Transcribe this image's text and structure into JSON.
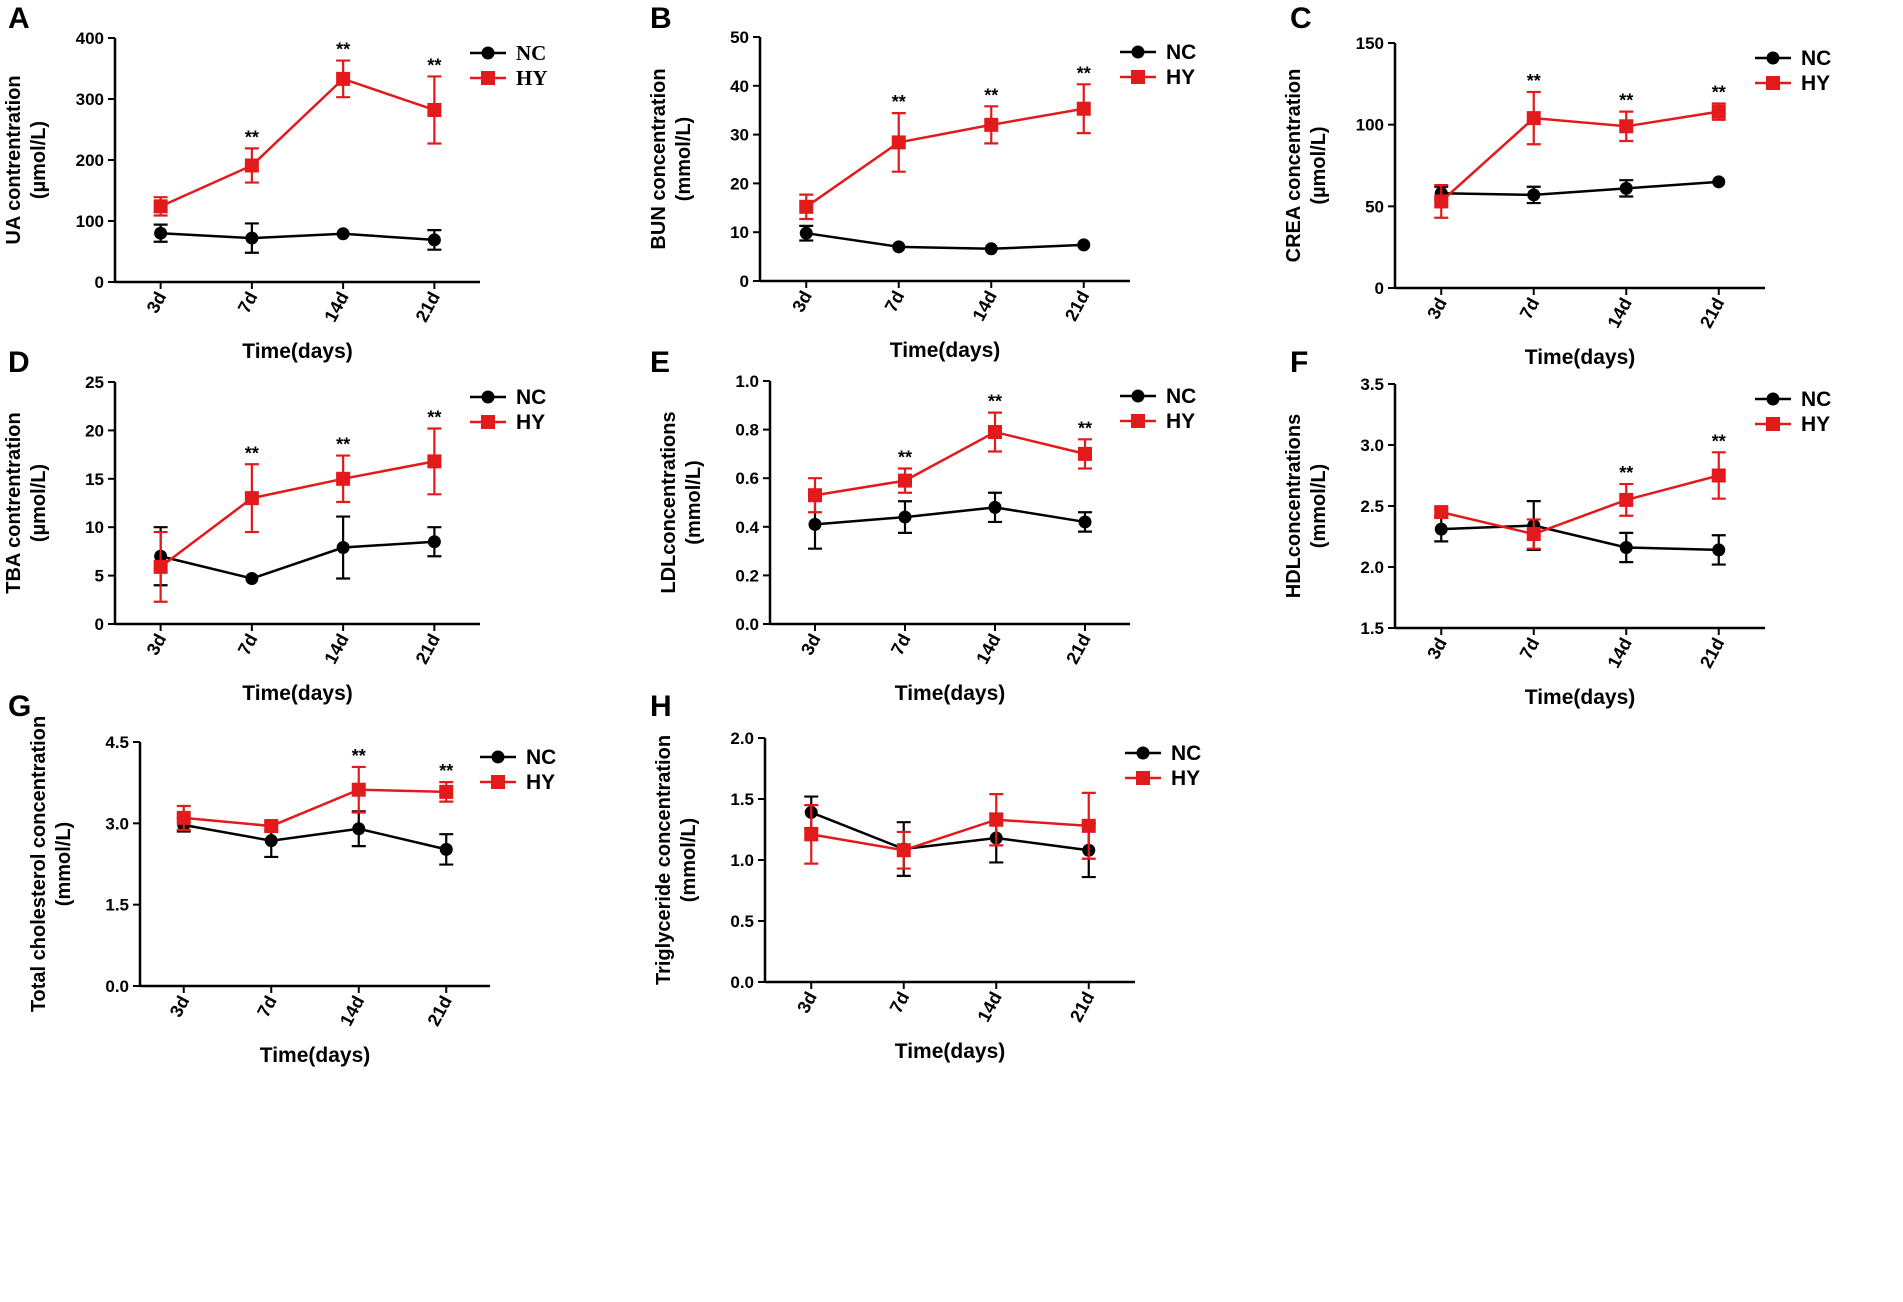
{
  "colors": {
    "NC": "#000000",
    "HY": "#e31a1c"
  },
  "chart_data": [
    {
      "panel": "A",
      "type": "line",
      "ylabel_lines": [
        "UA contrentration",
        "(µmol/L)"
      ],
      "xlabel": "Time(days)",
      "categories": [
        "3d",
        "7d",
        "14d",
        "21d"
      ],
      "ylim": [
        0,
        400
      ],
      "yticks": [
        "0",
        "100",
        "200",
        "300",
        "400"
      ],
      "ytick_values": [
        0,
        100,
        200,
        300,
        400
      ],
      "legend": [
        "NC",
        "HY"
      ],
      "legend_position": "top-right",
      "legend_serif": true,
      "series": [
        {
          "name": "NC",
          "values": [
            80,
            72,
            79,
            69
          ],
          "errors": [
            14,
            24,
            0,
            16
          ]
        },
        {
          "name": "HY",
          "values": [
            124,
            191,
            333,
            282
          ],
          "errors": [
            15,
            28,
            30,
            55
          ]
        }
      ],
      "annotations": [
        {
          "index": 1,
          "text": "**"
        },
        {
          "index": 2,
          "text": "**"
        },
        {
          "index": 3,
          "text": "**"
        }
      ]
    },
    {
      "panel": "B",
      "type": "line",
      "ylabel_lines": [
        "BUN concentration",
        "(mmol/L)"
      ],
      "xlabel": "Time(days)",
      "categories": [
        "3d",
        "7d",
        "14d",
        "21d"
      ],
      "ylim": [
        0,
        50
      ],
      "yticks": [
        "0",
        "10",
        "20",
        "30",
        "40",
        "50"
      ],
      "ytick_values": [
        0,
        10,
        20,
        30,
        40,
        50
      ],
      "legend": [
        "NC",
        "HY"
      ],
      "legend_position": "top-right",
      "series": [
        {
          "name": "NC",
          "values": [
            9.8,
            7.0,
            6.6,
            7.4
          ],
          "errors": [
            1.5,
            0,
            0,
            0
          ]
        },
        {
          "name": "HY",
          "values": [
            15.2,
            28.4,
            32.0,
            35.3
          ],
          "errors": [
            2.5,
            6.0,
            3.8,
            5.0
          ]
        }
      ],
      "annotations": [
        {
          "index": 1,
          "text": "**"
        },
        {
          "index": 2,
          "text": "**"
        },
        {
          "index": 3,
          "text": "**"
        }
      ]
    },
    {
      "panel": "C",
      "type": "line",
      "ylabel_lines": [
        "CREA concentration",
        "(µmol/L)"
      ],
      "xlabel": "Time(days)",
      "categories": [
        "3d",
        "7d",
        "14d",
        "21d"
      ],
      "ylim": [
        0,
        150
      ],
      "yticks": [
        "0",
        "50",
        "100",
        "150"
      ],
      "ytick_values": [
        0,
        50,
        100,
        150
      ],
      "legend": [
        "NC",
        "HY"
      ],
      "legend_position": "top-right",
      "series": [
        {
          "name": "NC",
          "values": [
            58,
            57,
            61,
            65
          ],
          "errors": [
            4,
            5,
            5,
            0
          ]
        },
        {
          "name": "HY",
          "values": [
            53,
            104,
            99,
            108
          ],
          "errors": [
            10,
            16,
            9,
            5
          ]
        }
      ],
      "annotations": [
        {
          "index": 1,
          "text": "**"
        },
        {
          "index": 2,
          "text": "**"
        },
        {
          "index": 3,
          "text": "**"
        }
      ]
    },
    {
      "panel": "D",
      "type": "line",
      "ylabel_lines": [
        "TBA contrentration",
        "(µmol/L)"
      ],
      "xlabel": "Time(days)",
      "categories": [
        "3d",
        "7d",
        "14d",
        "21d"
      ],
      "ylim": [
        0,
        25
      ],
      "yticks": [
        "0",
        "5",
        "10",
        "15",
        "20",
        "25"
      ],
      "ytick_values": [
        0,
        5,
        10,
        15,
        20,
        25
      ],
      "legend": [
        "NC",
        "HY"
      ],
      "legend_position": "top-right",
      "series": [
        {
          "name": "NC",
          "values": [
            7.0,
            4.7,
            7.9,
            8.5
          ],
          "errors": [
            3.0,
            0,
            3.2,
            1.5
          ]
        },
        {
          "name": "HY",
          "values": [
            5.9,
            13.0,
            15.0,
            16.8
          ],
          "errors": [
            3.6,
            3.5,
            2.4,
            3.4
          ]
        }
      ],
      "annotations": [
        {
          "index": 1,
          "text": "**"
        },
        {
          "index": 2,
          "text": "**"
        },
        {
          "index": 3,
          "text": "**"
        }
      ]
    },
    {
      "panel": "E",
      "type": "line",
      "ylabel_lines": [
        "LDLconcentrations",
        "(mmol/L)"
      ],
      "xlabel": "Time(days)",
      "categories": [
        "3d",
        "7d",
        "14d",
        "21d"
      ],
      "ylim": [
        0,
        1.0
      ],
      "yticks": [
        "0.0",
        "0.2",
        "0.4",
        "0.6",
        "0.8",
        "1.0"
      ],
      "ytick_values": [
        0,
        0.2,
        0.4,
        0.6,
        0.8,
        1.0
      ],
      "legend": [
        "NC",
        "HY"
      ],
      "legend_position": "top-right",
      "series": [
        {
          "name": "NC",
          "values": [
            0.41,
            0.44,
            0.48,
            0.42
          ],
          "errors": [
            0.1,
            0.065,
            0.06,
            0.04
          ]
        },
        {
          "name": "HY",
          "values": [
            0.53,
            0.59,
            0.79,
            0.7
          ],
          "errors": [
            0.07,
            0.05,
            0.08,
            0.06
          ]
        }
      ],
      "annotations": [
        {
          "index": 1,
          "text": "**"
        },
        {
          "index": 2,
          "text": "**"
        },
        {
          "index": 3,
          "text": "**"
        }
      ]
    },
    {
      "panel": "F",
      "type": "line",
      "ylabel_lines": [
        "HDLconcentrations",
        "(mmol/L)"
      ],
      "xlabel": "Time(days)",
      "categories": [
        "3d",
        "7d",
        "14d",
        "21d"
      ],
      "ylim": [
        1.5,
        3.5
      ],
      "yticks": [
        "1.5",
        "2.0",
        "2.5",
        "3.0",
        "3.5"
      ],
      "ytick_values": [
        1.5,
        2.0,
        2.5,
        3.0,
        3.5
      ],
      "legend": [
        "NC",
        "HY"
      ],
      "legend_position": "top-right",
      "series": [
        {
          "name": "NC",
          "values": [
            2.31,
            2.34,
            2.16,
            2.14
          ],
          "errors": [
            0.1,
            0.2,
            0.12,
            0.12
          ]
        },
        {
          "name": "HY",
          "values": [
            2.45,
            2.27,
            2.55,
            2.75
          ],
          "errors": [
            0.03,
            0.12,
            0.13,
            0.19
          ]
        }
      ],
      "annotations": [
        {
          "index": 2,
          "text": "**"
        },
        {
          "index": 3,
          "text": "**"
        }
      ]
    },
    {
      "panel": "G",
      "type": "line",
      "ylabel_lines": [
        "Total cholesterol concentration",
        "(mmol/L)"
      ],
      "xlabel": "Time(days)",
      "categories": [
        "3d",
        "7d",
        "14d",
        "21d"
      ],
      "ylim": [
        0,
        4.5
      ],
      "yticks": [
        "0.0",
        "1.5",
        "3.0",
        "4.5"
      ],
      "ytick_values": [
        0,
        1.5,
        3.0,
        4.5
      ],
      "legend": [
        "NC",
        "HY"
      ],
      "legend_position": "top-right",
      "series": [
        {
          "name": "NC",
          "values": [
            2.97,
            2.68,
            2.9,
            2.52
          ],
          "errors": [
            0.12,
            0.3,
            0.32,
            0.28
          ]
        },
        {
          "name": "HY",
          "values": [
            3.1,
            2.95,
            3.62,
            3.58
          ],
          "errors": [
            0.22,
            0.08,
            0.42,
            0.18
          ]
        }
      ],
      "annotations": [
        {
          "index": 2,
          "text": "**"
        },
        {
          "index": 3,
          "text": "**"
        }
      ]
    },
    {
      "panel": "H",
      "type": "line",
      "ylabel_lines": [
        "Triglyceride concentration",
        "(mmol/L)"
      ],
      "xlabel": "Time(days)",
      "categories": [
        "3d",
        "7d",
        "14d",
        "21d"
      ],
      "ylim": [
        0,
        2.0
      ],
      "yticks": [
        "0.0",
        "0.5",
        "1.0",
        "1.5",
        "2.0"
      ],
      "ytick_values": [
        0,
        0.5,
        1.0,
        1.5,
        2.0
      ],
      "legend": [
        "NC",
        "HY"
      ],
      "legend_position": "top-right",
      "series": [
        {
          "name": "NC",
          "values": [
            1.39,
            1.09,
            1.18,
            1.08
          ],
          "errors": [
            0.13,
            0.22,
            0.2,
            0.22
          ]
        },
        {
          "name": "HY",
          "values": [
            1.21,
            1.08,
            1.33,
            1.28
          ],
          "errors": [
            0.24,
            0.15,
            0.21,
            0.27
          ]
        }
      ],
      "annotations": []
    }
  ]
}
